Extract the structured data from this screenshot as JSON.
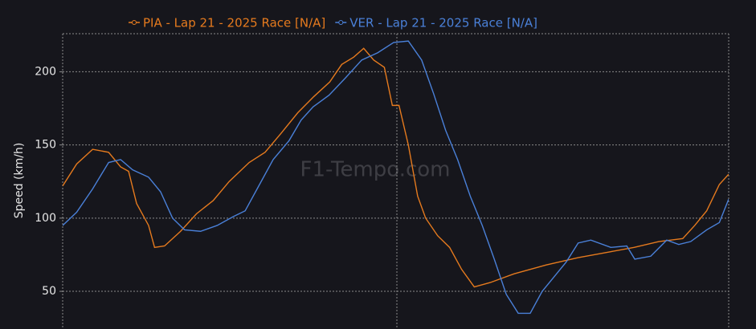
{
  "chart_data": {
    "type": "line",
    "ylabel": "Speed (km/h)",
    "watermark": "F1-Tempo.com",
    "xlim": [
      0,
      100
    ],
    "ylim": [
      27,
      226
    ],
    "yticks": [
      50,
      100,
      150,
      200
    ],
    "grid": true,
    "legend": "top",
    "series": [
      {
        "name": "PIA - Lap 21 - 2025 Race [N/A]",
        "color": "#e57a1e",
        "x": [
          0,
          2.1,
          4.5,
          6.9,
          8.7,
          9.9,
          11.1,
          12.9,
          13.8,
          15.3,
          17.7,
          20.1,
          22.6,
          25.0,
          28.0,
          30.4,
          32.8,
          35.3,
          37.7,
          40.1,
          41.9,
          43.7,
          45.2,
          46.7,
          48.3,
          49.5,
          50.5,
          51.9,
          53.3,
          54.5,
          56.3,
          58.1,
          59.9,
          61.8,
          64.2,
          67.8,
          72.6,
          77.4,
          82.2,
          85.8,
          89.5,
          93.1,
          94.9,
          96.7,
          98.6,
          100
        ],
        "values": [
          122,
          137,
          147,
          145,
          135,
          132,
          110,
          95,
          80,
          81,
          91,
          103,
          112,
          125,
          138,
          145,
          158,
          172,
          183,
          193,
          205,
          210,
          216,
          208,
          203,
          177,
          177,
          150,
          115,
          100,
          88,
          80,
          65,
          53,
          56,
          62,
          68,
          73,
          77,
          80,
          84,
          86,
          95,
          105,
          123,
          130
        ]
      },
      {
        "name": "VER - Lap 21 - 2025 Race [N/A]",
        "color": "#4a80d8",
        "x": [
          0,
          2.1,
          4.5,
          6.9,
          8.7,
          10.5,
          12.9,
          14.7,
          16.5,
          18.3,
          20.7,
          23.2,
          25.6,
          27.4,
          29.2,
          31.6,
          34.0,
          35.8,
          37.6,
          40.0,
          42.5,
          44.9,
          47.3,
          49.7,
          51.9,
          53.9,
          55.7,
          57.5,
          59.3,
          61.2,
          63.0,
          64.8,
          66.6,
          68.4,
          70.2,
          72.0,
          73.8,
          75.6,
          77.4,
          79.3,
          82.3,
          84.7,
          85.9,
          88.3,
          90.7,
          92.5,
          94.3,
          96.7,
          98.6,
          100
        ],
        "values": [
          95,
          104,
          120,
          138,
          140,
          133,
          128,
          118,
          100,
          92,
          91,
          95,
          101,
          105,
          120,
          140,
          153,
          167,
          176,
          184,
          196,
          208,
          213,
          220,
          221,
          208,
          185,
          160,
          140,
          115,
          95,
          72,
          48,
          35,
          35,
          50,
          60,
          70,
          83,
          85,
          80,
          81,
          72,
          74,
          85,
          82,
          84,
          92,
          97,
          113
        ]
      }
    ]
  }
}
